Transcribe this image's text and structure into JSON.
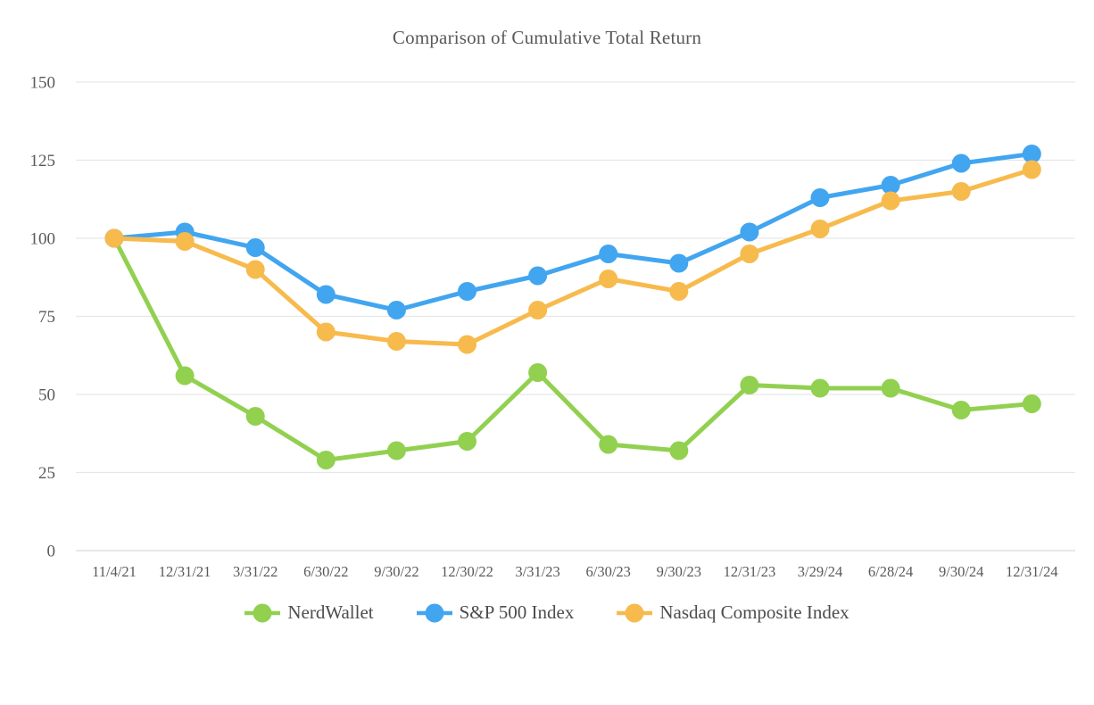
{
  "title": "Comparison of Cumulative Total Return",
  "chart_data": {
    "type": "line",
    "title": "Comparison of Cumulative Total Return",
    "categories": [
      "11/4/21",
      "12/31/21",
      "3/31/22",
      "6/30/22",
      "9/30/22",
      "12/30/22",
      "3/31/23",
      "6/30/23",
      "9/30/23",
      "12/31/23",
      "3/29/24",
      "6/28/24",
      "9/30/24",
      "12/31/24"
    ],
    "series": [
      {
        "name": "NerdWallet",
        "color": "#92D050",
        "values": [
          100,
          56,
          43,
          29,
          32,
          35,
          57,
          34,
          32,
          53,
          52,
          52,
          45,
          47
        ]
      },
      {
        "name": "S&P 500 Index",
        "color": "#42A5F0",
        "values": [
          100,
          102,
          97,
          82,
          77,
          83,
          88,
          95,
          92,
          102,
          113,
          117,
          124,
          127
        ]
      },
      {
        "name": "Nasdaq Composite Index",
        "color": "#F7BA4D",
        "values": [
          100,
          99,
          90,
          70,
          67,
          66,
          77,
          87,
          83,
          95,
          103,
          112,
          115,
          122
        ]
      }
    ],
    "xlabel": "",
    "ylabel": "",
    "ylim": [
      0,
      150
    ],
    "yticks": [
      0,
      25,
      50,
      75,
      100,
      125,
      150
    ],
    "grid": true,
    "legend_position": "bottom",
    "colors": {
      "gridline": "#e7e7e7",
      "zero_line": "#d9d9d9",
      "tick_text": "#595959",
      "title_text": "#595959",
      "legend_text": "#4d4d4d"
    }
  }
}
